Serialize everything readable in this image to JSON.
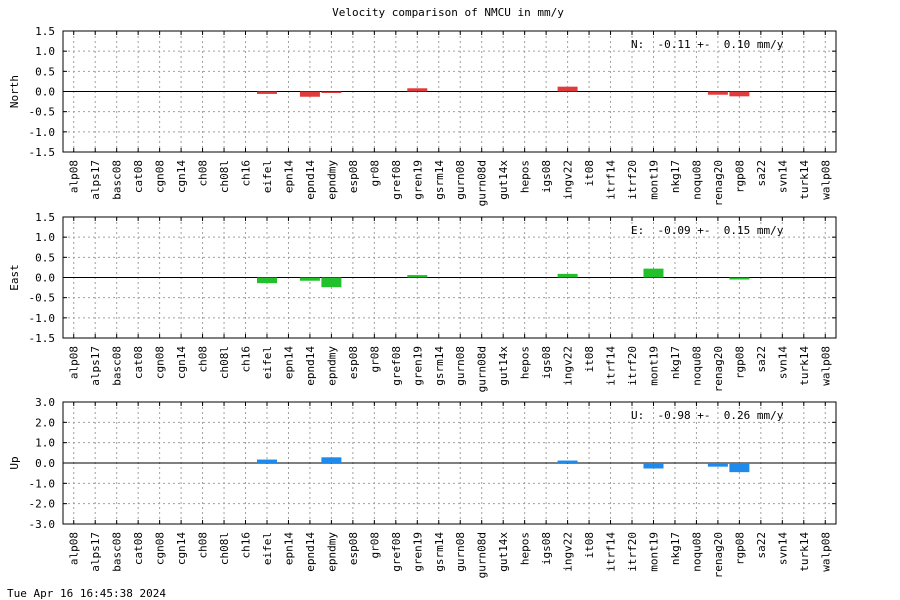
{
  "title": "Velocity comparison of NMCU in mm/y",
  "timestamp": "Tue Apr 16 16:45:38 2024",
  "colors": {
    "north": "#e03c3c",
    "east": "#22c02a",
    "up": "#1e8aec"
  },
  "chart_data": [
    {
      "type": "bar",
      "ylabel": "North",
      "ylim": [
        -1.5,
        1.5
      ],
      "yticks": [
        "1.5",
        "1.0",
        "0.5",
        "0.0",
        "-0.5",
        "-1.0",
        "-1.5"
      ],
      "grid": true,
      "annotation": "N:  -0.11 +-  0.10 mm/y",
      "categories": [
        "alp08",
        "alps17",
        "basc08",
        "cat08",
        "cgn08",
        "cgn14",
        "ch08",
        "ch08l",
        "ch16",
        "eifel",
        "epn14",
        "epnd14",
        "epndmy",
        "esp08",
        "gr08",
        "gref08",
        "gren19",
        "gsrm14",
        "gurn08",
        "gurn08d",
        "gut14x",
        "hepos",
        "igs08",
        "ingv22",
        "it08",
        "itrf14",
        "itrf20",
        "mont19",
        "nkg17",
        "noqu08",
        "renag20",
        "rgp08",
        "sa22",
        "svn14",
        "turk14",
        "walp08"
      ],
      "values": [
        null,
        null,
        null,
        null,
        null,
        null,
        null,
        null,
        null,
        -0.06,
        null,
        -0.13,
        -0.03,
        null,
        null,
        null,
        0.08,
        null,
        null,
        null,
        null,
        null,
        null,
        0.12,
        null,
        null,
        null,
        null,
        null,
        null,
        -0.08,
        -0.12,
        null,
        null,
        null,
        null
      ]
    },
    {
      "type": "bar",
      "ylabel": "East",
      "ylim": [
        -1.5,
        1.5
      ],
      "yticks": [
        "1.5",
        "1.0",
        "0.5",
        "0.0",
        "-0.5",
        "-1.0",
        "-1.5"
      ],
      "grid": true,
      "annotation": "E:  -0.09 +-  0.15 mm/y",
      "categories": [
        "alp08",
        "alps17",
        "basc08",
        "cat08",
        "cgn08",
        "cgn14",
        "ch08",
        "ch08l",
        "ch16",
        "eifel",
        "epn14",
        "epnd14",
        "epndmy",
        "esp08",
        "gr08",
        "gref08",
        "gren19",
        "gsrm14",
        "gurn08",
        "gurn08d",
        "gut14x",
        "hepos",
        "igs08",
        "ingv22",
        "it08",
        "itrf14",
        "itrf20",
        "mont19",
        "nkg17",
        "noqu08",
        "renag20",
        "rgp08",
        "sa22",
        "svn14",
        "turk14",
        "walp08"
      ],
      "values": [
        null,
        null,
        null,
        null,
        null,
        null,
        null,
        null,
        null,
        -0.14,
        null,
        -0.08,
        -0.24,
        null,
        null,
        null,
        0.06,
        null,
        null,
        null,
        null,
        null,
        null,
        0.09,
        null,
        null,
        null,
        0.22,
        null,
        null,
        null,
        -0.05,
        null,
        null,
        null,
        null
      ]
    },
    {
      "type": "bar",
      "ylabel": "Up",
      "ylim": [
        -3.0,
        3.0
      ],
      "yticks": [
        "3.0",
        "2.0",
        "1.0",
        "0.0",
        "-1.0",
        "-2.0",
        "-3.0"
      ],
      "grid": true,
      "annotation": "U:  -0.98 +-  0.26 mm/y",
      "categories": [
        "alp08",
        "alps17",
        "basc08",
        "cat08",
        "cgn08",
        "cgn14",
        "ch08",
        "ch08l",
        "ch16",
        "eifel",
        "epn14",
        "epnd14",
        "epndmy",
        "esp08",
        "gr08",
        "gref08",
        "gren19",
        "gsrm14",
        "gurn08",
        "gurn08d",
        "gut14x",
        "hepos",
        "igs08",
        "ingv22",
        "it08",
        "itrf14",
        "itrf20",
        "mont19",
        "nkg17",
        "noqu08",
        "renag20",
        "rgp08",
        "sa22",
        "svn14",
        "turk14",
        "walp08"
      ],
      "values": [
        null,
        null,
        null,
        null,
        null,
        null,
        null,
        null,
        null,
        0.17,
        null,
        null,
        0.28,
        null,
        null,
        null,
        null,
        null,
        null,
        null,
        null,
        null,
        null,
        0.12,
        null,
        null,
        null,
        -0.27,
        null,
        null,
        -0.18,
        -0.45,
        null,
        null,
        null,
        null
      ]
    }
  ]
}
